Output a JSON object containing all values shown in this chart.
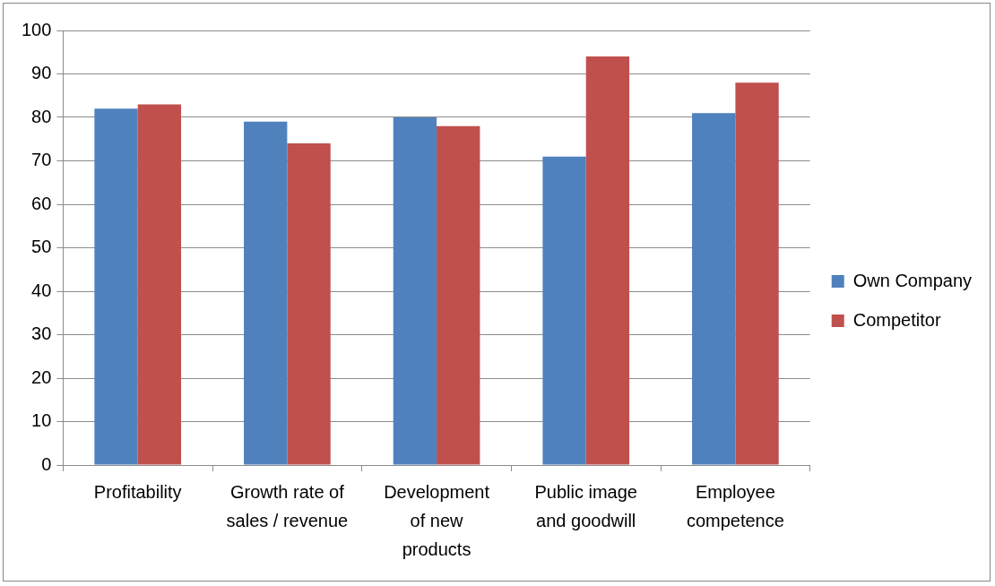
{
  "chart_data": {
    "type": "bar",
    "categories": [
      "Profitability",
      "Growth rate of sales / revenue",
      "Development of new products",
      "Public image and goodwill",
      "Employee competence"
    ],
    "series": [
      {
        "name": "Own Company",
        "color": "#4f81bd",
        "values": [
          82,
          79,
          80,
          71,
          81
        ]
      },
      {
        "name": "Competitor",
        "color": "#c0504d",
        "values": [
          83,
          74,
          78,
          94,
          88
        ]
      }
    ],
    "ylim": [
      0,
      100
    ],
    "yticks": [
      0,
      10,
      20,
      30,
      40,
      50,
      60,
      70,
      80,
      90,
      100
    ],
    "grid": "y",
    "legend": "right"
  }
}
